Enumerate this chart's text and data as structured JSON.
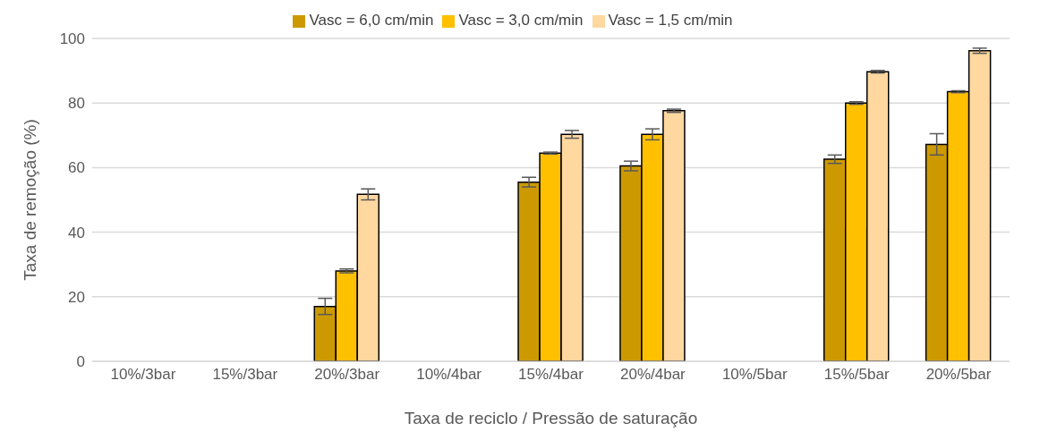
{
  "chart_data": {
    "type": "bar",
    "xlabel": "Taxa de reciclo / Pressão de saturação",
    "ylabel": "Taxa de remoção (%)",
    "categories": [
      "10%/3bar",
      "15%/3bar",
      "20%/3bar",
      "10%/4bar",
      "15%/4bar",
      "20%/4bar",
      "10%/5bar",
      "15%/5bar",
      "20%/5bar"
    ],
    "series": [
      {
        "name": "Vasc = 6,0 cm/min",
        "color": "#cc9a00",
        "values": [
          0,
          0,
          17,
          0,
          55.5,
          60.5,
          0,
          62.6,
          67.2
        ],
        "errors": [
          null,
          null,
          2.5,
          null,
          1.5,
          1.5,
          null,
          1.3,
          3.3
        ]
      },
      {
        "name": "Vasc = 3,0 cm/min",
        "color": "#ffc000",
        "values": [
          0,
          0,
          28,
          0,
          64.5,
          70.3,
          0,
          80,
          83.5
        ],
        "errors": [
          null,
          null,
          0.6,
          null,
          0.3,
          1.7,
          null,
          0.4,
          0.3
        ]
      },
      {
        "name": "Vasc = 1,5 cm/min",
        "color": "#ffd8a0",
        "values": [
          0,
          0,
          51.7,
          0,
          70.3,
          77.6,
          0,
          89.7,
          96.2
        ],
        "errors": [
          null,
          null,
          1.7,
          null,
          1.2,
          0.5,
          null,
          0.4,
          0.8
        ]
      }
    ],
    "ylim": [
      0,
      100
    ],
    "yticks": [
      0,
      20,
      40,
      60,
      80,
      100
    ],
    "grid": "y",
    "legend": "top"
  }
}
